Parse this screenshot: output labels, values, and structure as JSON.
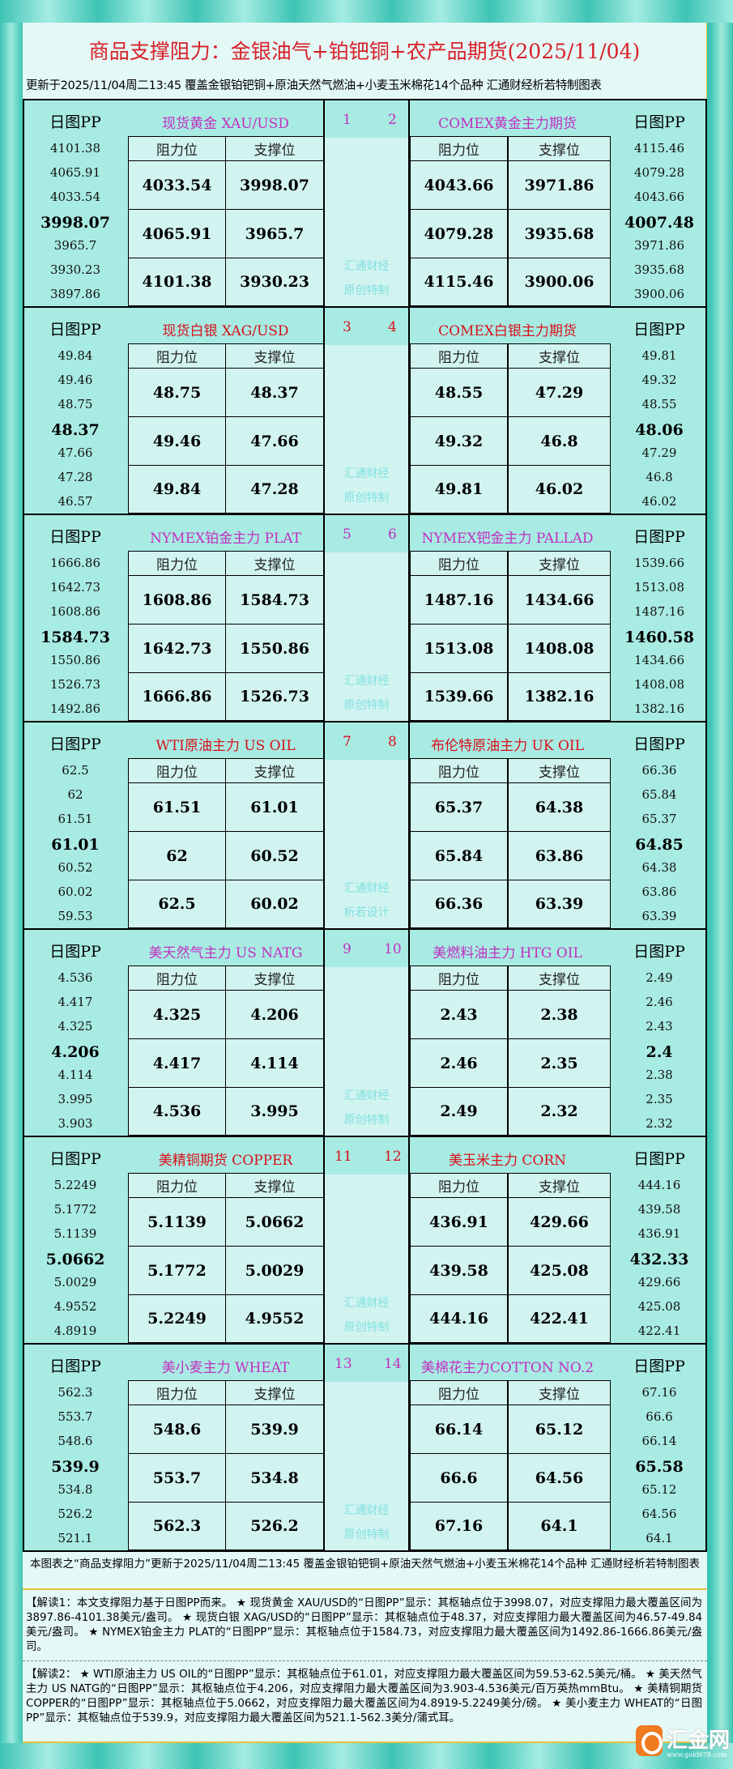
{
  "header": {
    "title": "商品支撑阻力：金银油气+铂钯铜+农产品期货(2025/11/04)",
    "subtitle": "更新于2025/11/04周二13:45 覆盖金银铂钯铜+原油天然气燃油+小麦玉米棉花14个品种 汇通财经析若特制图表"
  },
  "labels": {
    "pp": "日图PP",
    "resistance": "阻力位",
    "support": "支撑位"
  },
  "colors": {
    "purple": "#c030c0",
    "red": "#d8101a"
  },
  "blocks": [
    {
      "left": {
        "num": "1",
        "name": "现货黄金 XAU/USD",
        "color": "purple",
        "pp": [
          "4101.38",
          "4065.91",
          "4033.54",
          "3998.07",
          "3965.7",
          "3930.23",
          "3897.86"
        ],
        "res": [
          "4033.54",
          "4065.91",
          "4101.38"
        ],
        "sup": [
          "3998.07",
          "3965.7",
          "3930.23"
        ]
      },
      "right": {
        "num": "2",
        "name": "COMEX黄金主力期货",
        "color": "purple",
        "pp": [
          "4115.46",
          "4079.28",
          "4043.66",
          "4007.48",
          "3971.86",
          "3935.68",
          "3900.06"
        ],
        "res": [
          "4043.66",
          "4079.28",
          "4115.46"
        ],
        "sup": [
          "3971.86",
          "3935.68",
          "3900.06"
        ]
      },
      "wm": [
        "汇通财经",
        "原创特制"
      ]
    },
    {
      "left": {
        "num": "3",
        "name": "现货白银 XAG/USD",
        "color": "red",
        "pp": [
          "49.84",
          "49.46",
          "48.75",
          "48.37",
          "47.66",
          "47.28",
          "46.57"
        ],
        "res": [
          "48.75",
          "49.46",
          "49.84"
        ],
        "sup": [
          "48.37",
          "47.66",
          "47.28"
        ]
      },
      "right": {
        "num": "4",
        "name": "COMEX白银主力期货",
        "color": "red",
        "pp": [
          "49.81",
          "49.32",
          "48.55",
          "48.06",
          "47.29",
          "46.8",
          "46.02"
        ],
        "res": [
          "48.55",
          "49.32",
          "49.81"
        ],
        "sup": [
          "47.29",
          "46.8",
          "46.02"
        ]
      },
      "wm": [
        "汇通财经",
        "原创特制"
      ]
    },
    {
      "left": {
        "num": "5",
        "name": "NYMEX铂金主力 PLAT",
        "color": "purple",
        "pp": [
          "1666.86",
          "1642.73",
          "1608.86",
          "1584.73",
          "1550.86",
          "1526.73",
          "1492.86"
        ],
        "res": [
          "1608.86",
          "1642.73",
          "1666.86"
        ],
        "sup": [
          "1584.73",
          "1550.86",
          "1526.73"
        ]
      },
      "right": {
        "num": "6",
        "name": "NYMEX钯金主力 PALLAD",
        "color": "purple",
        "pp": [
          "1539.66",
          "1513.08",
          "1487.16",
          "1460.58",
          "1434.66",
          "1408.08",
          "1382.16"
        ],
        "res": [
          "1487.16",
          "1513.08",
          "1539.66"
        ],
        "sup": [
          "1434.66",
          "1408.08",
          "1382.16"
        ]
      },
      "wm": [
        "汇通财经",
        "原创特制"
      ]
    },
    {
      "left": {
        "num": "7",
        "name": "WTI原油主力 US OIL",
        "color": "red",
        "pp": [
          "62.5",
          "62",
          "61.51",
          "61.01",
          "60.52",
          "60.02",
          "59.53"
        ],
        "res": [
          "61.51",
          "62",
          "62.5"
        ],
        "sup": [
          "61.01",
          "60.52",
          "60.02"
        ]
      },
      "right": {
        "num": "8",
        "name": "布伦特原油主力 UK OIL",
        "color": "red",
        "pp": [
          "66.36",
          "65.84",
          "65.37",
          "64.85",
          "64.38",
          "63.86",
          "63.39"
        ],
        "res": [
          "65.37",
          "65.84",
          "66.36"
        ],
        "sup": [
          "64.38",
          "63.86",
          "63.39"
        ]
      },
      "wm": [
        "汇通财经",
        "析若设计"
      ]
    },
    {
      "left": {
        "num": "9",
        "name": "美天然气主力 US NATG",
        "color": "purple",
        "pp": [
          "4.536",
          "4.417",
          "4.325",
          "4.206",
          "4.114",
          "3.995",
          "3.903"
        ],
        "res": [
          "4.325",
          "4.417",
          "4.536"
        ],
        "sup": [
          "4.206",
          "4.114",
          "3.995"
        ]
      },
      "right": {
        "num": "10",
        "name": "美燃料油主力 HTG OIL",
        "color": "purple",
        "pp": [
          "2.49",
          "2.46",
          "2.43",
          "2.4",
          "2.38",
          "2.35",
          "2.32"
        ],
        "res": [
          "2.43",
          "2.46",
          "2.49"
        ],
        "sup": [
          "2.38",
          "2.35",
          "2.32"
        ]
      },
      "wm": [
        "汇通财经",
        "原创特制"
      ]
    },
    {
      "left": {
        "num": "11",
        "name": "美精铜期货 COPPER",
        "color": "red",
        "pp": [
          "5.2249",
          "5.1772",
          "5.1139",
          "5.0662",
          "5.0029",
          "4.9552",
          "4.8919"
        ],
        "res": [
          "5.1139",
          "5.1772",
          "5.2249"
        ],
        "sup": [
          "5.0662",
          "5.0029",
          "4.9552"
        ]
      },
      "right": {
        "num": "12",
        "name": "美玉米主力 CORN",
        "color": "red",
        "pp": [
          "444.16",
          "439.58",
          "436.91",
          "432.33",
          "429.66",
          "425.08",
          "422.41"
        ],
        "res": [
          "436.91",
          "439.58",
          "444.16"
        ],
        "sup": [
          "429.66",
          "425.08",
          "422.41"
        ]
      },
      "wm": [
        "汇通财经",
        "原创特制"
      ]
    },
    {
      "left": {
        "num": "13",
        "name": "美小麦主力 WHEAT",
        "color": "purple",
        "pp": [
          "562.3",
          "553.7",
          "548.6",
          "539.9",
          "534.8",
          "526.2",
          "521.1"
        ],
        "res": [
          "548.6",
          "553.7",
          "562.3"
        ],
        "sup": [
          "539.9",
          "534.8",
          "526.2"
        ]
      },
      "right": {
        "num": "14",
        "name": "美棉花主力COTTON NO.2",
        "color": "purple",
        "pp": [
          "67.16",
          "66.6",
          "66.14",
          "65.58",
          "65.12",
          "64.56",
          "64.1"
        ],
        "res": [
          "66.14",
          "66.6",
          "67.16"
        ],
        "sup": [
          "65.12",
          "64.56",
          "64.1"
        ]
      },
      "wm": [
        "汇通财经",
        "原创特制"
      ]
    }
  ],
  "footer": {
    "note": "本图表之“商品支撑阻力”更新于2025/11/04周二13:45 覆盖金银铂钯铜+原油天然气燃油+小麦玉米棉花14个品种 汇通财经析若特制图表",
    "interp1": "【解读1：本文支撑阻力基于日图PP而来。 ★ 现货黄金 XAU/USD的“日图PP”显示：其枢轴点位于3998.07，对应支撑阻力最大覆盖区间为3897.86-4101.38美元/盎司。 ★ 现货白银 XAG/USD的“日图PP”显示：其枢轴点位于48.37，对应支撑阻力最大覆盖区间为46.57-49.84美元/盎司。 ★ NYMEX铂金主力 PLAT的“日图PP”显示：其枢轴点位于1584.73，对应支撑阻力最大覆盖区间为1492.86-1666.86美元/盎司。",
    "interp2": "【解读2： ★ WTI原油主力 US OIL的“日图PP”显示：其枢轴点位于61.01，对应支撑阻力最大覆盖区间为59.53-62.5美元/桶。 ★ 美天然气主力 US NATG的“日图PP”显示：其枢轴点位于4.206，对应支撑阻力最大覆盖区间为3.903-4.536美元/百万英热mmBtu。 ★ 美精铜期货 COPPER的“日图PP”显示：其枢轴点位于5.0662，对应支撑阻力最大覆盖区间为4.8919-5.2249美分/磅。 ★ 美小麦主力 WHEAT的“日图PP”显示：其枢轴点位于539.9，对应支撑阻力最大覆盖区间为521.1-562.3美分/蒲式耳。"
  },
  "logo": {
    "text": "汇金网",
    "url": "www.gold678.com"
  }
}
